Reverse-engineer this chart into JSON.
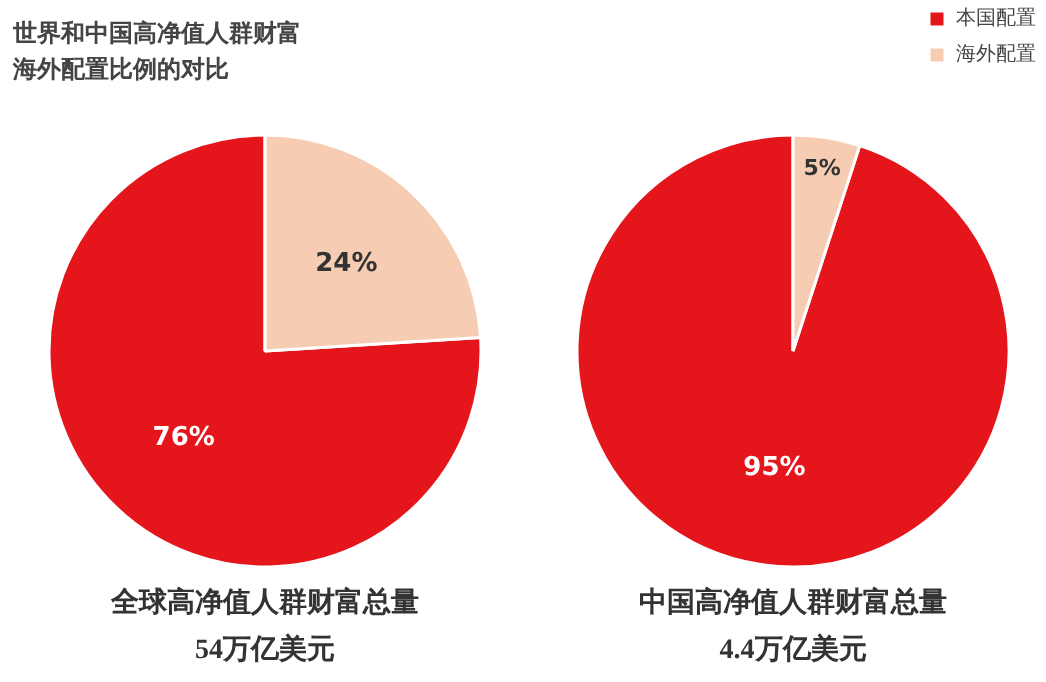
{
  "chart_data": [
    {
      "type": "pie",
      "title": "世界和中国高净值人群财富海外配置比例的对比",
      "xlabel": "全球高净值人群财富总量\n54万亿美元",
      "categories": [
        "本国配置",
        "海外配置"
      ],
      "values": [
        76,
        24
      ],
      "colors": [
        "#e5151c",
        "#f6cdb3"
      ],
      "value_labels": [
        "76%",
        "24%"
      ],
      "legend": "top right"
    },
    {
      "type": "pie",
      "xlabel": "中国高净值人群财富总量\n4.4万亿美元",
      "categories": [
        null,
        null
      ],
      "values": [
        95,
        5
      ],
      "colors": [
        "#e5151c",
        "#f6cdb3"
      ],
      "value_labels": [
        "95%",
        "5%"
      ]
    }
  ]
}
